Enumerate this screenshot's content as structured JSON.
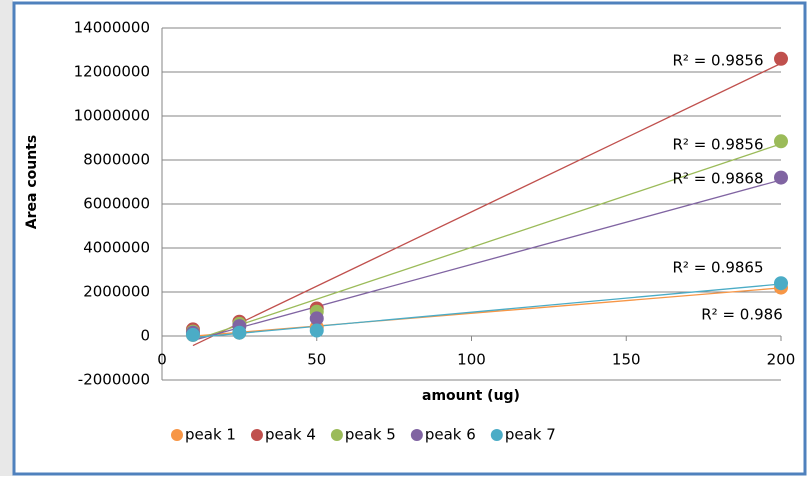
{
  "chart_data": {
    "type": "scatter",
    "x_label": "amount (ug)",
    "y_label": "Area counts",
    "x": [
      10,
      25,
      50,
      200
    ],
    "series": [
      {
        "name": "peak 1",
        "color": "#F79646",
        "values": [
          50000,
          150000,
          400000,
          2200000
        ],
        "r2_label": "R² = 0.986"
      },
      {
        "name": "peak 4",
        "color": "#C0504D",
        "values": [
          300000,
          650000,
          1250000,
          12600000
        ],
        "r2_label": "R² = 0.9856"
      },
      {
        "name": "peak 5",
        "color": "#9BBB59",
        "values": [
          200000,
          550000,
          1100000,
          8850000
        ],
        "r2_label": "R² = 0.9856"
      },
      {
        "name": "peak 6",
        "color": "#8064A2",
        "values": [
          150000,
          450000,
          800000,
          7200000
        ],
        "r2_label": "R² = 0.9868"
      },
      {
        "name": "peak 7",
        "color": "#4BACC6",
        "values": [
          50000,
          150000,
          250000,
          2400000
        ],
        "r2_label": "R² = 0.9865"
      }
    ],
    "xlim": [
      0,
      200
    ],
    "xticks": [
      0,
      50,
      100,
      150,
      200
    ],
    "ylim": [
      -2000000,
      14000000
    ],
    "yticks": [
      -2000000,
      0,
      2000000,
      4000000,
      6000000,
      8000000,
      10000000,
      12000000,
      14000000
    ],
    "grid": true,
    "trendline": "linear",
    "legend": "bottom"
  }
}
